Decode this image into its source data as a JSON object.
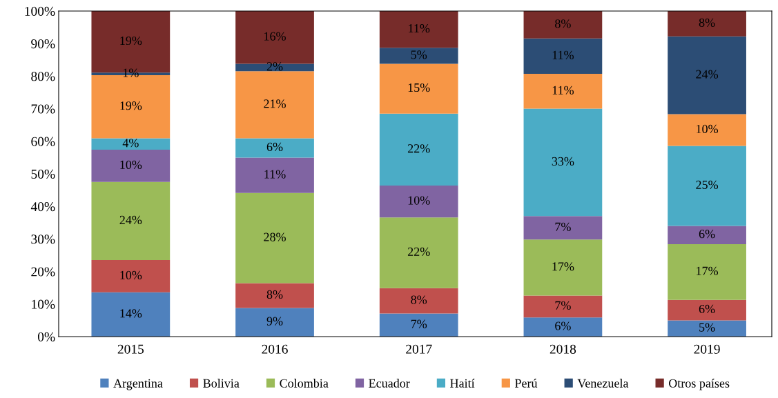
{
  "chart_data": {
    "type": "bar",
    "stacked": true,
    "categories": [
      "2015",
      "2016",
      "2017",
      "2018",
      "2019"
    ],
    "ylim": [
      0,
      100
    ],
    "yticks": [
      {
        "value": 0,
        "label": "0%"
      },
      {
        "value": 10,
        "label": "10%"
      },
      {
        "value": 20,
        "label": "20%"
      },
      {
        "value": 30,
        "label": "30%"
      },
      {
        "value": 40,
        "label": "40%"
      },
      {
        "value": 50,
        "label": "50%"
      },
      {
        "value": 60,
        "label": "60%"
      },
      {
        "value": 70,
        "label": "70%"
      },
      {
        "value": 80,
        "label": "80%"
      },
      {
        "value": 90,
        "label": "90%"
      },
      {
        "value": 100,
        "label": "100%"
      }
    ],
    "grid": false,
    "legend": "bottom",
    "series": [
      {
        "name": "Argentina",
        "color": "#4f81bd",
        "values": [
          13.6,
          8.8,
          7.1,
          5.9,
          5.0
        ],
        "value_labels": [
          "14%",
          "9%",
          "7%",
          "6%",
          "5%"
        ]
      },
      {
        "name": "Bolivia",
        "color": "#c0504d",
        "values": [
          9.9,
          7.6,
          7.8,
          6.7,
          6.3
        ],
        "value_labels": [
          "10%",
          "8%",
          "8%",
          "7%",
          "6%"
        ]
      },
      {
        "name": "Colombia",
        "color": "#9bbb59",
        "values": [
          24.0,
          27.7,
          21.7,
          17.2,
          17.1
        ],
        "value_labels": [
          "24%",
          "28%",
          "22%",
          "17%",
          "17%"
        ]
      },
      {
        "name": "Ecuador",
        "color": "#8064a2",
        "values": [
          9.9,
          10.9,
          9.8,
          7.2,
          5.6
        ],
        "value_labels": [
          "10%",
          "11%",
          "10%",
          "7%",
          "6%"
        ]
      },
      {
        "name": "Haití",
        "color": "#4bacc6",
        "values": [
          3.5,
          5.9,
          22.1,
          33.0,
          24.6
        ],
        "value_labels": [
          "4%",
          "6%",
          "22%",
          "33%",
          "25%"
        ]
      },
      {
        "name": "Perú",
        "color": "#f79646",
        "values": [
          19.4,
          20.6,
          15.3,
          10.7,
          9.7
        ],
        "value_labels": [
          "19%",
          "21%",
          "15%",
          "11%",
          "10%"
        ]
      },
      {
        "name": "Venezuela",
        "color": "#2c4d75",
        "values": [
          0.8,
          2.3,
          4.9,
          10.9,
          23.9
        ],
        "value_labels": [
          "1%",
          "2%",
          "5%",
          "11%",
          "24%"
        ]
      },
      {
        "name": "Otros países",
        "color": "#772c2a",
        "values": [
          18.9,
          16.2,
          11.3,
          8.4,
          7.8
        ],
        "value_labels": [
          "19%",
          "16%",
          "11%",
          "8%",
          "8%"
        ]
      }
    ]
  }
}
